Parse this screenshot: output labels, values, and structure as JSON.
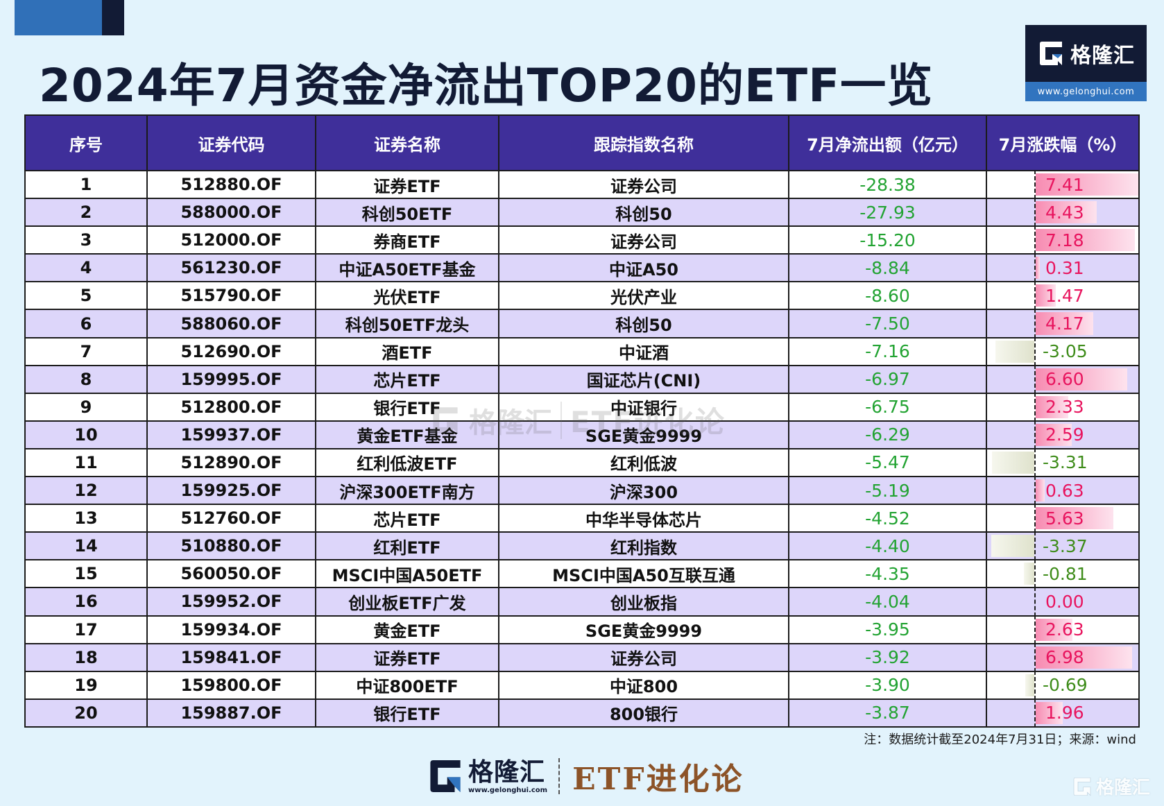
{
  "title": "2024年7月资金净流出TOP20的ETF一览",
  "brand": {
    "name": "格隆汇",
    "url": "www.gelonghui.com",
    "product": "ETF进化论"
  },
  "colors": {
    "header_bg": "#3f2f9a",
    "row_alt_bg": "#ddd6fa",
    "outflow_text": "#22a332",
    "gain_text": "#e8145e",
    "loss_text": "#3e8c1a",
    "title_text": "#121b35",
    "page_bg": "#e2f3fc"
  },
  "table": {
    "headers": [
      "序号",
      "证券代码",
      "证券名称",
      "跟踪指数名称",
      "7月净流出额（亿元）",
      "7月涨跌幅（%）"
    ],
    "rows": [
      {
        "no": "1",
        "code": "512880.OF",
        "name": "证券ETF",
        "index": "证券公司",
        "outflow": "-28.38",
        "change": "7.41"
      },
      {
        "no": "2",
        "code": "588000.OF",
        "name": "科创50ETF",
        "index": "科创50",
        "outflow": "-27.93",
        "change": "4.43"
      },
      {
        "no": "3",
        "code": "512000.OF",
        "name": "券商ETF",
        "index": "证券公司",
        "outflow": "-15.20",
        "change": "7.18"
      },
      {
        "no": "4",
        "code": "561230.OF",
        "name": "中证A50ETF基金",
        "index": "中证A50",
        "outflow": "-8.84",
        "change": "0.31"
      },
      {
        "no": "5",
        "code": "515790.OF",
        "name": "光伏ETF",
        "index": "光伏产业",
        "outflow": "-8.60",
        "change": "1.47"
      },
      {
        "no": "6",
        "code": "588060.OF",
        "name": "科创50ETF龙头",
        "index": "科创50",
        "outflow": "-7.50",
        "change": "4.17"
      },
      {
        "no": "7",
        "code": "512690.OF",
        "name": "酒ETF",
        "index": "中证酒",
        "outflow": "-7.16",
        "change": "-3.05"
      },
      {
        "no": "8",
        "code": "159995.OF",
        "name": "芯片ETF",
        "index": "国证芯片(CNI)",
        "outflow": "-6.97",
        "change": "6.60"
      },
      {
        "no": "9",
        "code": "512800.OF",
        "name": "银行ETF",
        "index": "中证银行",
        "outflow": "-6.75",
        "change": "2.33"
      },
      {
        "no": "10",
        "code": "159937.OF",
        "name": "黄金ETF基金",
        "index": "SGE黄金9999",
        "outflow": "-6.29",
        "change": "2.59"
      },
      {
        "no": "11",
        "code": "512890.OF",
        "name": "红利低波ETF",
        "index": "红利低波",
        "outflow": "-5.47",
        "change": "-3.31"
      },
      {
        "no": "12",
        "code": "159925.OF",
        "name": "沪深300ETF南方",
        "index": "沪深300",
        "outflow": "-5.19",
        "change": "0.63"
      },
      {
        "no": "13",
        "code": "512760.OF",
        "name": "芯片ETF",
        "index": "中华半导体芯片",
        "outflow": "-4.52",
        "change": "5.63"
      },
      {
        "no": "14",
        "code": "510880.OF",
        "name": "红利ETF",
        "index": "红利指数",
        "outflow": "-4.40",
        "change": "-3.37"
      },
      {
        "no": "15",
        "code": "560050.OF",
        "name": "MSCI中国A50ETF",
        "index": "MSCI中国A50互联互通",
        "outflow": "-4.35",
        "change": "-0.81"
      },
      {
        "no": "16",
        "code": "159952.OF",
        "name": "创业板ETF广发",
        "index": "创业板指",
        "outflow": "-4.04",
        "change": "0.00"
      },
      {
        "no": "17",
        "code": "159934.OF",
        "name": "黄金ETF",
        "index": "SGE黄金9999",
        "outflow": "-3.95",
        "change": "2.63"
      },
      {
        "no": "18",
        "code": "159841.OF",
        "name": "证券ETF",
        "index": "证券公司",
        "outflow": "-3.92",
        "change": "6.98"
      },
      {
        "no": "19",
        "code": "159800.OF",
        "name": "中证800ETF",
        "index": "中证800",
        "outflow": "-3.90",
        "change": "-0.69"
      },
      {
        "no": "20",
        "code": "159887.OF",
        "name": "银行ETF",
        "index": "800银行",
        "outflow": "-3.87",
        "change": "1.96"
      }
    ]
  },
  "note": "注：数据统计截至2024年7月31日；来源：wind"
}
